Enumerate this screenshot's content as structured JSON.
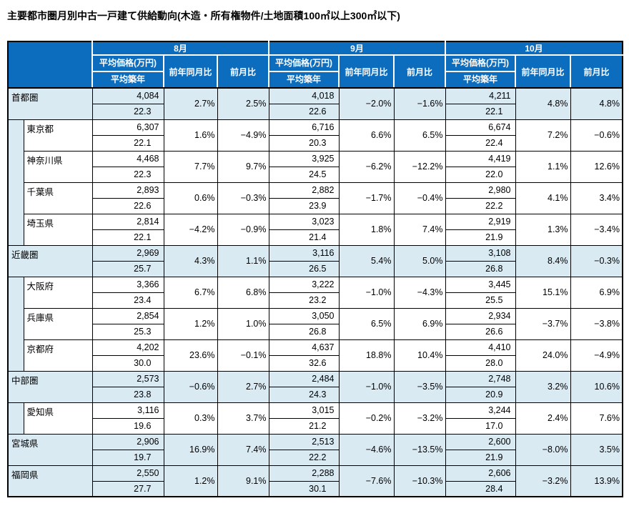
{
  "title": "主要都市圏月別中古一戸建て供給動向(木造・所有権物件/土地面積100㎡以上300㎡以下)",
  "colors": {
    "header_bg": "#0c6cbd",
    "band_bg": "#d9eaf3",
    "header_text": "#ffffff",
    "grid": "#000000"
  },
  "table": {
    "months": [
      "8月",
      "9月",
      "10月"
    ],
    "sub_headers": {
      "price": "平均価格(万円)",
      "age": "平均築年",
      "yoy": "前年同月比",
      "mom": "前月比"
    },
    "rows": [
      {
        "label": "首都圏",
        "type": "region",
        "months": [
          {
            "price": "4,084",
            "age": "22.3",
            "yoy": "2.7%",
            "mom": "2.5%"
          },
          {
            "price": "4,018",
            "age": "22.6",
            "yoy": "−2.0%",
            "mom": "−1.6%"
          },
          {
            "price": "4,211",
            "age": "22.1",
            "yoy": "4.8%",
            "mom": "4.8%"
          }
        ]
      },
      {
        "label": "東京都",
        "type": "pref",
        "months": [
          {
            "price": "6,307",
            "age": "22.1",
            "yoy": "1.6%",
            "mom": "−4.9%"
          },
          {
            "price": "6,716",
            "age": "20.3",
            "yoy": "6.6%",
            "mom": "6.5%"
          },
          {
            "price": "6,674",
            "age": "22.4",
            "yoy": "7.2%",
            "mom": "−0.6%"
          }
        ]
      },
      {
        "label": "神奈川県",
        "type": "pref",
        "months": [
          {
            "price": "4,468",
            "age": "22.3",
            "yoy": "7.7%",
            "mom": "9.7%"
          },
          {
            "price": "3,925",
            "age": "24.5",
            "yoy": "−6.2%",
            "mom": "−12.2%"
          },
          {
            "price": "4,419",
            "age": "22.0",
            "yoy": "1.1%",
            "mom": "12.6%"
          }
        ]
      },
      {
        "label": "千葉県",
        "type": "pref",
        "months": [
          {
            "price": "2,893",
            "age": "22.6",
            "yoy": "0.6%",
            "mom": "−0.3%"
          },
          {
            "price": "2,882",
            "age": "23.9",
            "yoy": "−1.7%",
            "mom": "−0.4%"
          },
          {
            "price": "2,980",
            "age": "22.2",
            "yoy": "4.1%",
            "mom": "3.4%"
          }
        ]
      },
      {
        "label": "埼玉県",
        "type": "pref",
        "months": [
          {
            "price": "2,814",
            "age": "22.1",
            "yoy": "−4.2%",
            "mom": "−0.9%"
          },
          {
            "price": "3,023",
            "age": "21.4",
            "yoy": "1.8%",
            "mom": "7.4%"
          },
          {
            "price": "2,919",
            "age": "21.9",
            "yoy": "1.3%",
            "mom": "−3.4%"
          }
        ]
      },
      {
        "label": "近畿圏",
        "type": "region",
        "months": [
          {
            "price": "2,969",
            "age": "25.7",
            "yoy": "4.3%",
            "mom": "1.1%"
          },
          {
            "price": "3,116",
            "age": "26.5",
            "yoy": "5.4%",
            "mom": "5.0%"
          },
          {
            "price": "3,108",
            "age": "26.8",
            "yoy": "8.4%",
            "mom": "−0.3%"
          }
        ]
      },
      {
        "label": "大阪府",
        "type": "pref",
        "months": [
          {
            "price": "3,366",
            "age": "23.4",
            "yoy": "6.7%",
            "mom": "6.8%"
          },
          {
            "price": "3,222",
            "age": "23.2",
            "yoy": "−1.0%",
            "mom": "−4.3%"
          },
          {
            "price": "3,445",
            "age": "25.5",
            "yoy": "15.1%",
            "mom": "6.9%"
          }
        ]
      },
      {
        "label": "兵庫県",
        "type": "pref",
        "months": [
          {
            "price": "2,854",
            "age": "25.3",
            "yoy": "1.2%",
            "mom": "1.0%"
          },
          {
            "price": "3,050",
            "age": "26.8",
            "yoy": "6.5%",
            "mom": "6.9%"
          },
          {
            "price": "2,934",
            "age": "26.6",
            "yoy": "−3.7%",
            "mom": "−3.8%"
          }
        ]
      },
      {
        "label": "京都府",
        "type": "pref",
        "months": [
          {
            "price": "4,202",
            "age": "30.0",
            "yoy": "23.6%",
            "mom": "−0.1%"
          },
          {
            "price": "4,637",
            "age": "32.6",
            "yoy": "18.8%",
            "mom": "10.4%"
          },
          {
            "price": "4,410",
            "age": "28.0",
            "yoy": "24.0%",
            "mom": "−4.9%"
          }
        ]
      },
      {
        "label": "中部圏",
        "type": "region",
        "months": [
          {
            "price": "2,573",
            "age": "23.8",
            "yoy": "−0.6%",
            "mom": "2.7%"
          },
          {
            "price": "2,484",
            "age": "24.3",
            "yoy": "−1.0%",
            "mom": "−3.5%"
          },
          {
            "price": "2,748",
            "age": "20.9",
            "yoy": "3.2%",
            "mom": "10.6%"
          }
        ]
      },
      {
        "label": "愛知県",
        "type": "pref",
        "months": [
          {
            "price": "3,116",
            "age": "19.6",
            "yoy": "0.3%",
            "mom": "3.7%"
          },
          {
            "price": "3,015",
            "age": "21.2",
            "yoy": "−0.2%",
            "mom": "−3.2%"
          },
          {
            "price": "3,244",
            "age": "17.0",
            "yoy": "2.4%",
            "mom": "7.6%"
          }
        ]
      },
      {
        "label": "宮城県",
        "type": "region",
        "months": [
          {
            "price": "2,906",
            "age": "19.7",
            "yoy": "16.9%",
            "mom": "7.4%"
          },
          {
            "price": "2,513",
            "age": "22.2",
            "yoy": "−4.6%",
            "mom": "−13.5%"
          },
          {
            "price": "2,600",
            "age": "21.9",
            "yoy": "−8.0%",
            "mom": "3.5%"
          }
        ]
      },
      {
        "label": "福岡県",
        "type": "region",
        "months": [
          {
            "price": "2,550",
            "age": "27.7",
            "yoy": "1.2%",
            "mom": "9.1%"
          },
          {
            "price": "2,288",
            "age": "30.1",
            "yoy": "−7.6%",
            "mom": "−10.3%"
          },
          {
            "price": "2,606",
            "age": "28.4",
            "yoy": "−3.2%",
            "mom": "13.9%"
          }
        ]
      }
    ]
  }
}
